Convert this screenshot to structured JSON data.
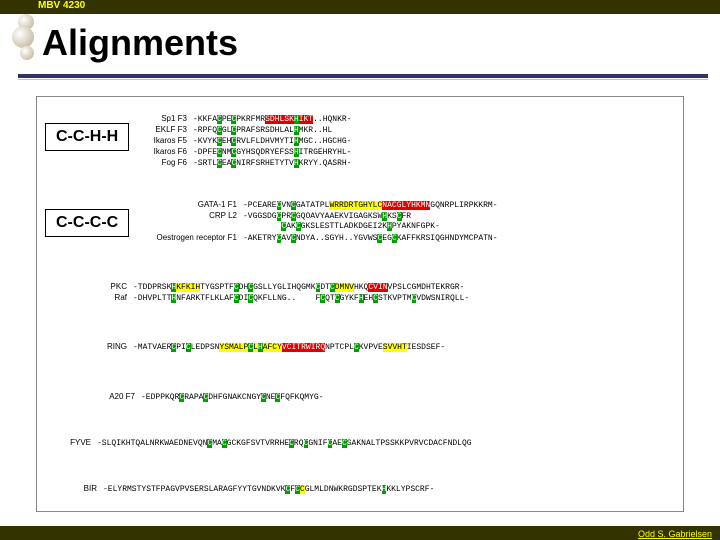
{
  "course_code": "MBV 4230",
  "title": "Alignments",
  "label1": "C-C-H-H",
  "label2": "C-C-C-C",
  "author": "Odd S. Gabrielsen",
  "colors": {
    "header_bg": "#333300",
    "header_text": "#ffff00",
    "divider_top": "#333366",
    "divider_bottom": "#cccc66",
    "highlight_green": "#00a000",
    "highlight_red": "#e00000",
    "highlight_yellow": "#ffff00"
  },
  "block1": [
    {
      "label": "Sp1 F3",
      "seq": [
        [
          "",
          "-KKFA"
        ],
        [
          "g",
          "C"
        ],
        [
          "",
          "PE"
        ],
        [
          "g",
          "C"
        ],
        [
          "",
          "PKRFMR"
        ],
        [
          "r",
          "SDHLSK"
        ],
        [
          "g",
          "H"
        ],
        [
          "r",
          "IKT"
        ],
        [
          "",
          "..H"
        ],
        [
          "",
          "QNKR-"
        ]
      ]
    },
    {
      "label": "EKLF F3",
      "seq": [
        [
          "",
          "-RPFQ"
        ],
        [
          "g",
          "C"
        ],
        [
          "",
          "GL"
        ],
        [
          "g",
          "C"
        ],
        [
          "",
          "PRAFSRSDHLAL"
        ],
        [
          "g",
          "H"
        ],
        [
          "",
          "MKR..HL"
        ]
      ]
    },
    {
      "label": "Ikaros F5",
      "seq": [
        [
          "",
          "-KVYK"
        ],
        [
          "g",
          "C"
        ],
        [
          "",
          "EH"
        ],
        [
          "g",
          "C"
        ],
        [
          "",
          "RVLFLDHVMYTI"
        ],
        [
          "g",
          "H"
        ],
        [
          "",
          "MGC..HGCHG-"
        ]
      ]
    },
    {
      "label": "Ikaros F6",
      "seq": [
        [
          "",
          "-DPFE"
        ],
        [
          "g",
          "C"
        ],
        [
          "",
          "NM"
        ],
        [
          "g",
          "C"
        ],
        [
          "",
          "GYHSQDRYEFSS"
        ],
        [
          "g",
          "H"
        ],
        [
          "",
          "ITRGEHRYHL-"
        ]
      ]
    },
    {
      "label": "Fog F6",
      "seq": [
        [
          "",
          "-SRTL"
        ],
        [
          "g",
          "C"
        ],
        [
          "",
          "EA"
        ],
        [
          "g",
          "C"
        ],
        [
          "",
          "NIRFSRHETYTV"
        ],
        [
          "g",
          "H"
        ],
        [
          "",
          "KRYY.QASRH-"
        ]
      ]
    }
  ],
  "block2": [
    {
      "label": "GATA-1 F1",
      "seq": [
        [
          "",
          "-PCEARE"
        ],
        [
          "g",
          "C"
        ],
        [
          "",
          "VN"
        ],
        [
          "g",
          "C"
        ],
        [
          "",
          "GATATPL"
        ],
        [
          "y",
          "WRRDRTGHYLC"
        ],
        [
          "r",
          "NACGLYHKMN"
        ],
        [
          "",
          "GQNRPLIRPKKRM-"
        ]
      ]
    },
    {
      "label": "CRP L2",
      "seq": [
        [
          "",
          "-VGGSDG"
        ],
        [
          "g",
          "C"
        ],
        [
          "",
          "PR"
        ],
        [
          "g",
          "C"
        ],
        [
          "",
          "GQOAVYAAEKVIGAGKSW"
        ],
        [
          "g",
          "H"
        ],
        [
          "",
          "KS"
        ],
        [
          "g",
          "C"
        ],
        [
          "",
          "FR"
        ]
      ]
    },
    {
      "label": "",
      "seq": [
        [
          "",
          "        "
        ],
        [
          "g",
          "C"
        ],
        [
          "",
          "AK"
        ],
        [
          "g",
          "C"
        ],
        [
          "",
          "GKSLESTTLADKDGEI2K"
        ],
        [
          "g",
          "H"
        ],
        [
          "",
          "PYAKNFGPK-"
        ]
      ]
    },
    {
      "label": "Oestrogen receptor F1",
      "seq": [
        [
          "",
          "-AKETRY"
        ],
        [
          "g",
          "C"
        ],
        [
          "",
          "AV"
        ],
        [
          "g",
          "C"
        ],
        [
          "",
          "NDYA..SGYH..YGVWS"
        ],
        [
          "g",
          "C"
        ],
        [
          "",
          "EG"
        ],
        [
          "g",
          "C"
        ],
        [
          "",
          "KAFFKRSIQGHNDYMCPATN-"
        ]
      ]
    }
  ],
  "block3": [
    {
      "label": "PKC",
      "seq": [
        [
          "",
          "-TDDPRSK"
        ],
        [
          "g",
          "H"
        ],
        [
          "y",
          "KFKIH"
        ],
        [
          "",
          "TYGSPTF"
        ],
        [
          "g",
          "C"
        ],
        [
          "",
          "DH"
        ],
        [
          "g",
          "C"
        ],
        [
          "",
          "GSLLYGLIHQGMK"
        ],
        [
          "g",
          "C"
        ],
        [
          "",
          "DT"
        ],
        [
          "g",
          "C"
        ],
        [
          "y",
          "DMNV"
        ],
        [
          "",
          "HKQ"
        ],
        [
          "r",
          "CVIN"
        ],
        [
          "",
          "VPSLCGMDHTEKRGR-"
        ]
      ]
    },
    {
      "label": "Raf",
      "seq": [
        [
          "",
          "-DHVPLTT"
        ],
        [
          "g",
          "H"
        ],
        [
          "",
          "NFARKTFLKLAF"
        ],
        [
          "g",
          "C"
        ],
        [
          "",
          "DI"
        ],
        [
          "g",
          "C"
        ],
        [
          "",
          "QKFLLNG..    F"
        ],
        [
          "g",
          "C"
        ],
        [
          "",
          "QT"
        ],
        [
          "g",
          "C"
        ],
        [
          "",
          "GYKF"
        ],
        [
          "g",
          "H"
        ],
        [
          "",
          "EH"
        ],
        [
          "g",
          "C"
        ],
        [
          "",
          "STKVPTM"
        ],
        [
          "g",
          "C"
        ],
        [
          "",
          "VDWSNIRQLL-"
        ]
      ]
    }
  ],
  "block4": [
    {
      "label": "RING",
      "seq": [
        [
          "",
          "-MATVAER"
        ],
        [
          "g",
          "C"
        ],
        [
          "",
          "PI"
        ],
        [
          "g",
          "C"
        ],
        [
          "",
          "LEDPSN"
        ],
        [
          "y",
          "YSMALP"
        ],
        [
          "g",
          "C"
        ],
        [
          "y",
          "L"
        ],
        [
          "g",
          "H"
        ],
        [
          "y",
          "AFCY"
        ],
        [
          "r",
          "VCITRWIRQ"
        ],
        [
          "",
          "NPTCPL"
        ],
        [
          "g",
          "C"
        ],
        [
          "",
          "KVPVE"
        ],
        [
          "y",
          "SVVHT"
        ],
        [
          "",
          "IESDSEF-"
        ]
      ]
    }
  ],
  "block5": [
    {
      "label": "A20 F7",
      "seq": [
        [
          "",
          "-EDPPKQR"
        ],
        [
          "g",
          "C"
        ],
        [
          "",
          "RAPA"
        ],
        [
          "g",
          "C"
        ],
        [
          "",
          "DHFGNAKCNGY"
        ],
        [
          "g",
          "C"
        ],
        [
          "",
          "NE"
        ],
        [
          "g",
          "C"
        ],
        [
          "",
          "FQFKQMYG-"
        ]
      ]
    }
  ],
  "block6": [
    {
      "label": "FYVE",
      "seq": [
        [
          "",
          "-SLQIKHTQALNRKWAEDNEVQN"
        ],
        [
          "g",
          "C"
        ],
        [
          "",
          "MA"
        ],
        [
          "g",
          "C"
        ],
        [
          "",
          "GCKGFSVTVRRHE"
        ],
        [
          "g",
          "C"
        ],
        [
          "",
          "RQ"
        ],
        [
          "g",
          "C"
        ],
        [
          "",
          "GNIF"
        ],
        [
          "g",
          "C"
        ],
        [
          "",
          "AE"
        ],
        [
          "g",
          "C"
        ],
        [
          "",
          "SAKNALTPSSKKPVRVCDACFNDLQG"
        ]
      ]
    }
  ],
  "block7": [
    {
      "label": "BIR",
      "seq": [
        [
          "",
          "-ELYRMSTYSTFPAGVPVSERSLARAGFYYTGVNDKVK"
        ],
        [
          "g",
          "C"
        ],
        [
          "",
          "F"
        ],
        [
          "g",
          "C"
        ],
        [
          "y",
          "C"
        ],
        [
          "",
          "GLMLDNWKRGDSPTEK"
        ],
        [
          "g",
          "H"
        ],
        [
          "",
          "KKLYPSCRF-"
        ]
      ]
    }
  ]
}
